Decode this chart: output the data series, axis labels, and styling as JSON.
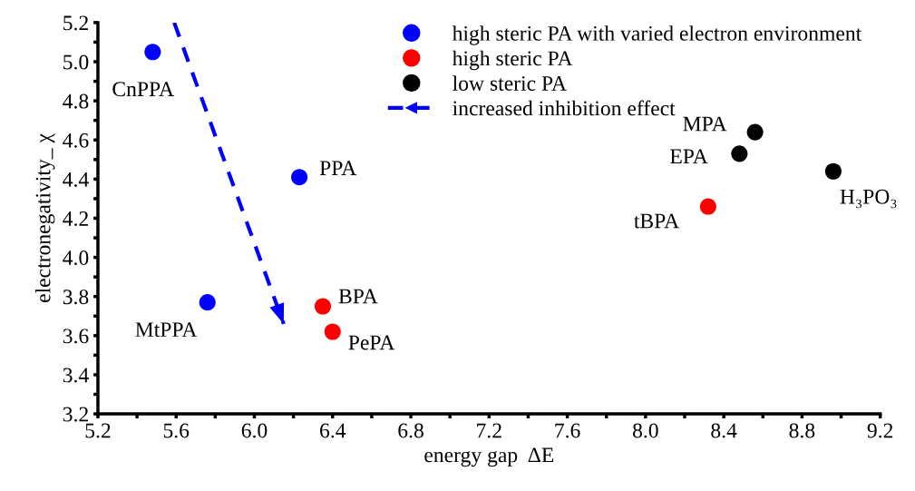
{
  "chart_data": {
    "type": "scatter",
    "xlabel": "energy gap  ΔE",
    "ylabel": "electronegativity_ χ",
    "xlim": [
      5.2,
      9.2
    ],
    "ylim": [
      3.2,
      5.2
    ],
    "xticks": [
      5.2,
      {
        "value": 5.4,
        "label": null
      },
      5.6,
      {
        "value": 5.8,
        "label": null
      },
      {
        "value": 6.0,
        "label": "6.0"
      },
      {
        "value": 6.2,
        "label": null
      },
      6.4,
      {
        "value": 6.6,
        "label": null
      },
      6.8,
      {
        "value": 7.0,
        "label": null
      },
      7.2,
      {
        "value": 7.4,
        "label": null
      },
      7.6,
      {
        "value": 7.8,
        "label": null
      },
      {
        "value": 8.0,
        "label": "8.0"
      },
      {
        "value": 8.2,
        "label": null
      },
      8.4,
      {
        "value": 8.6,
        "label": null
      },
      8.8,
      {
        "value": 9.0,
        "label": null
      },
      9.2
    ],
    "yticks": [
      3.2,
      {
        "value": 3.3,
        "label": null
      },
      3.4,
      {
        "value": 3.5,
        "label": null
      },
      3.6,
      {
        "value": 3.7,
        "label": null
      },
      3.8,
      {
        "value": 3.9,
        "label": null
      },
      {
        "value": 4.0,
        "label": "4.0"
      },
      {
        "value": 4.1,
        "label": null
      },
      4.2,
      {
        "value": 4.3,
        "label": null
      },
      4.4,
      {
        "value": 4.5,
        "label": null
      },
      4.6,
      {
        "value": 4.7,
        "label": null
      },
      4.8,
      {
        "value": 4.9,
        "label": null
      },
      {
        "value": 5.0,
        "label": "5.0"
      },
      {
        "value": 5.1,
        "label": null
      },
      5.2
    ],
    "grid": false,
    "legend": "top right",
    "marker": "circle",
    "series": [
      {
        "name": "high steric PA with varied electron environment",
        "color": "#0000ff",
        "x": [
          5.48,
          6.23,
          5.76
        ],
        "values": [
          5.05,
          4.41,
          3.77
        ]
      },
      {
        "name": "high steric PA",
        "color": "#ff0000",
        "x": [
          6.35,
          6.4,
          8.32
        ],
        "values": [
          3.75,
          3.62,
          4.26
        ]
      },
      {
        "name": "low steric PA",
        "color": "#000000",
        "x": [
          8.48,
          8.56,
          8.96
        ],
        "values": [
          4.53,
          4.64,
          4.44
        ]
      },
      {
        "name": "increased inhibition effect",
        "type": "line",
        "line_style": "dashed",
        "marker": "none",
        "color": "#0000ff",
        "x": [
          5.59,
          6.15
        ],
        "values": [
          5.2,
          3.66
        ]
      }
    ],
    "annotations": [
      {
        "text": "CnPPA",
        "x": 5.48,
        "y": 5.05
      },
      {
        "text": "PPA",
        "x": 6.23,
        "y": 4.41
      },
      {
        "text": "MtPPA",
        "x": 5.76,
        "y": 3.77
      },
      {
        "text": "BPA",
        "x": 6.35,
        "y": 3.75
      },
      {
        "text": "PePA",
        "x": 6.4,
        "y": 3.62
      },
      {
        "text": "tBPA",
        "x": 8.32,
        "y": 4.26
      },
      {
        "text": "EPA",
        "x": 8.48,
        "y": 4.53
      },
      {
        "text": "MPA",
        "x": 8.56,
        "y": 4.64
      },
      {
        "text": "H₃PO₃",
        "x": 8.96,
        "y": 4.44
      }
    ]
  }
}
